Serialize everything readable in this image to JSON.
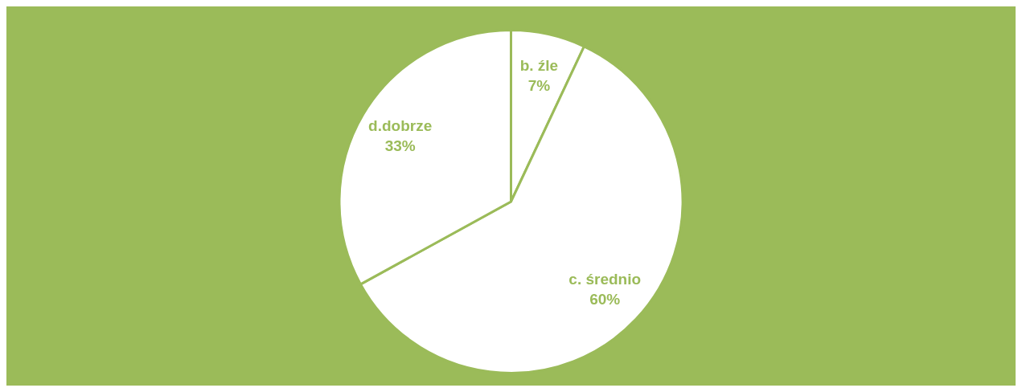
{
  "chart_data": {
    "type": "pie",
    "categories": [
      "b. źle",
      "c. średnio",
      "d.dobrze"
    ],
    "values": [
      7,
      60,
      33
    ],
    "colors": [
      "#ffffff",
      "#ffffff",
      "#ffffff"
    ],
    "value_labels": [
      "7%",
      "60%",
      "33%"
    ],
    "legend": false
  }
}
